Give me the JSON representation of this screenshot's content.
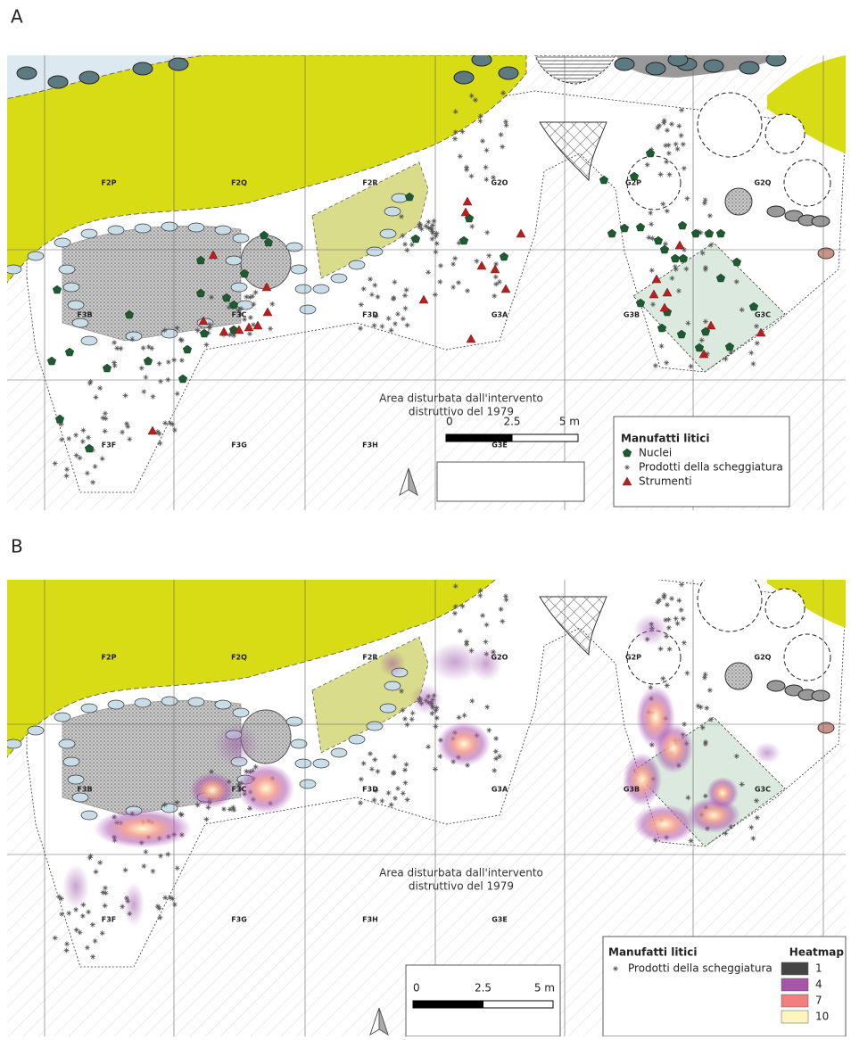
{
  "panels": [
    {
      "label": "A",
      "grid_labels": [
        "F2P",
        "F2Q",
        "F2R",
        "G2O",
        "G2P",
        "G2Q",
        "F3B",
        "F3C",
        "F3D",
        "G3A",
        "G3B",
        "G3C",
        "F3F",
        "F3G",
        "F3H",
        "G3E"
      ],
      "annotation": [
        "Area disturbata dall'intervento",
        "distruttivo del 1979"
      ],
      "legend": {
        "title": "Manufatti litici",
        "items": [
          "Nuclei",
          "Prodotti della scheggiatura",
          "Strumenti"
        ]
      },
      "scale": [
        "0",
        "2.5",
        "5 m"
      ]
    },
    {
      "label": "B",
      "grid_labels": [
        "F2P",
        "F2Q",
        "F2R",
        "G2O",
        "G2P",
        "G2Q",
        "F3B",
        "F3C",
        "F3D",
        "G3A",
        "G3B",
        "G3C",
        "F3F",
        "F3G",
        "F3H",
        "G3E"
      ],
      "annotation": [
        "Area disturbata dall'intervento",
        "distruttivo del 1979"
      ],
      "legend": {
        "title": "Manufatti litici",
        "items": [
          "Prodotti della scheggiatura"
        ]
      },
      "heatmap": {
        "title": "Heatmap",
        "values": [
          1,
          4,
          7,
          10
        ]
      },
      "scale": [
        "0",
        "2.5",
        "5 m"
      ]
    }
  ]
}
